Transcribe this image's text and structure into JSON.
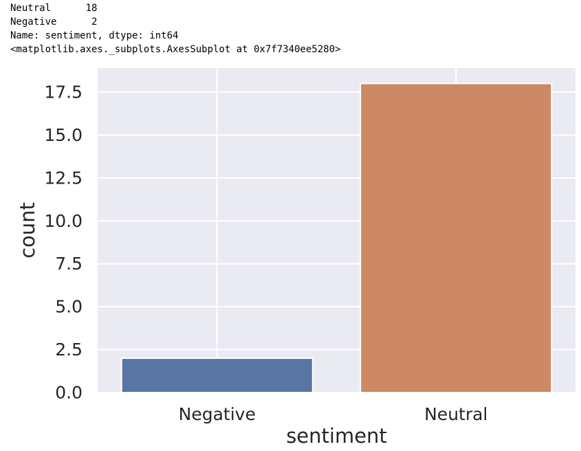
{
  "console": {
    "lines": [
      "Neutral      18",
      "Negative      2",
      "Name: sentiment, dtype: int64",
      "<matplotlib.axes._subplots.AxesSubplot at 0x7f7340ee5280>"
    ]
  },
  "colors": {
    "background": "#eaeaf2",
    "grid": "#ffffff",
    "bar_negative": "#5975a4",
    "bar_neutral": "#cc8963",
    "text": "#262626"
  },
  "chart_data": {
    "type": "bar",
    "categories": [
      "Negative",
      "Neutral"
    ],
    "values": [
      2,
      18
    ],
    "xlabel": "sentiment",
    "ylabel": "count",
    "ylim": [
      0,
      18.9
    ],
    "yticks": [
      0.0,
      2.5,
      5.0,
      7.5,
      10.0,
      12.5,
      15.0,
      17.5
    ],
    "ytick_labels": [
      "0.0",
      "2.5",
      "5.0",
      "7.5",
      "10.0",
      "12.5",
      "15.0",
      "17.5"
    ],
    "grid": true,
    "legend": "none"
  }
}
